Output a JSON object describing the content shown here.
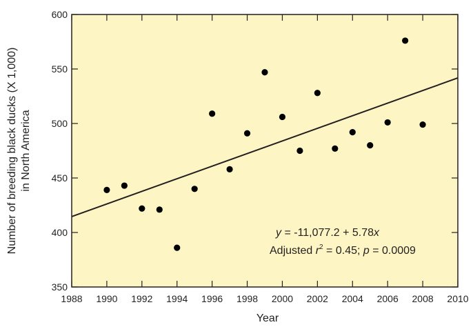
{
  "chart_data": {
    "type": "scatter",
    "xlabel": "Year",
    "ylabel_lines": [
      "Number of breeding black ducks (X 1,000)",
      "in North America"
    ],
    "xlim": [
      1988,
      2010
    ],
    "ylim": [
      350,
      600
    ],
    "xticks": [
      1988,
      1990,
      1992,
      1994,
      1996,
      1998,
      2000,
      2002,
      2004,
      2006,
      2008,
      2010
    ],
    "yticks": [
      350,
      400,
      450,
      500,
      550,
      600
    ],
    "grid": false,
    "background_color": "#fdf5c3",
    "point_color": "#000000",
    "points": [
      {
        "x": 1990,
        "y": 439
      },
      {
        "x": 1991,
        "y": 443
      },
      {
        "x": 1992,
        "y": 422
      },
      {
        "x": 1993,
        "y": 421
      },
      {
        "x": 1994,
        "y": 386
      },
      {
        "x": 1995,
        "y": 440
      },
      {
        "x": 1996,
        "y": 509
      },
      {
        "x": 1997,
        "y": 458
      },
      {
        "x": 1998,
        "y": 491
      },
      {
        "x": 1999,
        "y": 547
      },
      {
        "x": 2000,
        "y": 506
      },
      {
        "x": 2001,
        "y": 475
      },
      {
        "x": 2002,
        "y": 528
      },
      {
        "x": 2003,
        "y": 477
      },
      {
        "x": 2004,
        "y": 492
      },
      {
        "x": 2005,
        "y": 480
      },
      {
        "x": 2006,
        "y": 501
      },
      {
        "x": 2007,
        "y": 576
      },
      {
        "x": 2008,
        "y": 499
      }
    ],
    "trendline": {
      "x": [
        1988,
        2010
      ],
      "y": [
        414.6,
        541.8
      ]
    },
    "annotation": {
      "equation": {
        "y": "y",
        "eq": " = -11,077.2 + 5.78",
        "x": "x"
      },
      "stats": {
        "prefix": "Adjusted ",
        "r": "r",
        "sup": "2",
        "mid": " = 0.45; ",
        "p": "p",
        "suffix": " = 0.0009"
      }
    }
  }
}
